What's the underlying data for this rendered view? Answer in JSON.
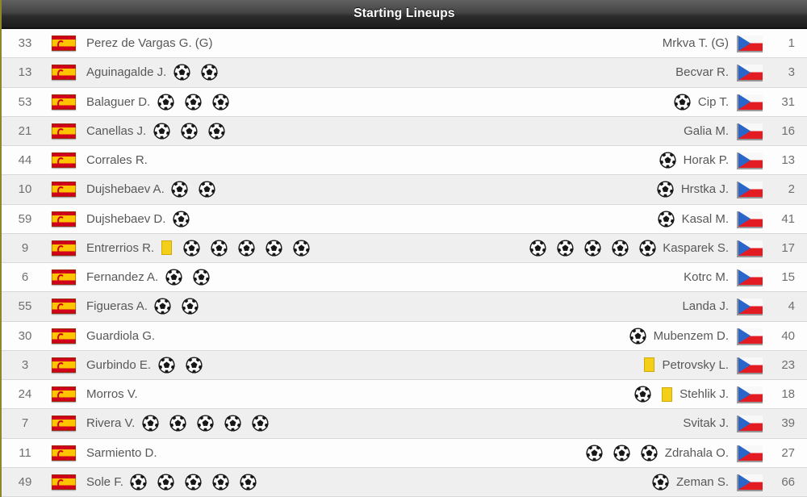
{
  "header": {
    "title": "Starting Lineups"
  },
  "icons": {
    "goal": "soccer-ball-icon",
    "booking": "yellow-card-icon",
    "left_flag": "spain-flag-icon",
    "right_flag": "czech-flag-icon"
  },
  "colors": {
    "yellow_card": "#f3cf17",
    "spain_red": "#d0021b",
    "spain_yellow": "#ffc400",
    "czech_blue": "#2a66c9",
    "czech_red": "#e31b23",
    "header_top": "#616161",
    "header_bottom": "#1e1e1e",
    "row_alt_bg": "#efeff0",
    "left_edge_accent": "#8d872c"
  },
  "table": {
    "rows": [
      {
        "left": {
          "num": "33",
          "name": "Perez de Vargas G. (G)",
          "goals": 0,
          "yellow_card": false
        },
        "right": {
          "num": "1",
          "name": "Mrkva T. (G)",
          "goals": 0,
          "yellow_card": false
        }
      },
      {
        "left": {
          "num": "13",
          "name": "Aguinagalde J.",
          "goals": 2,
          "yellow_card": false
        },
        "right": {
          "num": "3",
          "name": "Becvar R.",
          "goals": 0,
          "yellow_card": false
        }
      },
      {
        "left": {
          "num": "53",
          "name": "Balaguer D.",
          "goals": 3,
          "yellow_card": false
        },
        "right": {
          "num": "31",
          "name": "Cip T.",
          "goals": 1,
          "yellow_card": false
        }
      },
      {
        "left": {
          "num": "21",
          "name": "Canellas J.",
          "goals": 3,
          "yellow_card": false
        },
        "right": {
          "num": "16",
          "name": "Galia M.",
          "goals": 0,
          "yellow_card": false
        }
      },
      {
        "left": {
          "num": "44",
          "name": "Corrales R.",
          "goals": 0,
          "yellow_card": false
        },
        "right": {
          "num": "13",
          "name": "Horak P.",
          "goals": 1,
          "yellow_card": false
        }
      },
      {
        "left": {
          "num": "10",
          "name": "Dujshebaev A.",
          "goals": 2,
          "yellow_card": false
        },
        "right": {
          "num": "2",
          "name": "Hrstka J.",
          "goals": 1,
          "yellow_card": false
        }
      },
      {
        "left": {
          "num": "59",
          "name": "Dujshebaev D.",
          "goals": 1,
          "yellow_card": false
        },
        "right": {
          "num": "41",
          "name": "Kasal M.",
          "goals": 1,
          "yellow_card": false
        }
      },
      {
        "left": {
          "num": "9",
          "name": "Entrerrios R.",
          "goals": 5,
          "yellow_card": true
        },
        "right": {
          "num": "17",
          "name": "Kasparek S.",
          "goals": 5,
          "yellow_card": false
        }
      },
      {
        "left": {
          "num": "6",
          "name": "Fernandez A.",
          "goals": 2,
          "yellow_card": false
        },
        "right": {
          "num": "15",
          "name": "Kotrc M.",
          "goals": 0,
          "yellow_card": false
        }
      },
      {
        "left": {
          "num": "55",
          "name": "Figueras A.",
          "goals": 2,
          "yellow_card": false
        },
        "right": {
          "num": "4",
          "name": "Landa J.",
          "goals": 0,
          "yellow_card": false
        }
      },
      {
        "left": {
          "num": "30",
          "name": "Guardiola G.",
          "goals": 0,
          "yellow_card": false
        },
        "right": {
          "num": "40",
          "name": "Mubenzem D.",
          "goals": 1,
          "yellow_card": false
        }
      },
      {
        "left": {
          "num": "3",
          "name": "Gurbindo E.",
          "goals": 2,
          "yellow_card": false
        },
        "right": {
          "num": "23",
          "name": "Petrovsky L.",
          "goals": 0,
          "yellow_card": true
        }
      },
      {
        "left": {
          "num": "24",
          "name": "Morros V.",
          "goals": 0,
          "yellow_card": false
        },
        "right": {
          "num": "18",
          "name": "Stehlik J.",
          "goals": 1,
          "yellow_card": true
        }
      },
      {
        "left": {
          "num": "7",
          "name": "Rivera V.",
          "goals": 5,
          "yellow_card": false
        },
        "right": {
          "num": "39",
          "name": "Svitak J.",
          "goals": 0,
          "yellow_card": false
        }
      },
      {
        "left": {
          "num": "11",
          "name": "Sarmiento D.",
          "goals": 0,
          "yellow_card": false
        },
        "right": {
          "num": "27",
          "name": "Zdrahala O.",
          "goals": 3,
          "yellow_card": false
        }
      },
      {
        "left": {
          "num": "49",
          "name": "Sole F.",
          "goals": 5,
          "yellow_card": false
        },
        "right": {
          "num": "66",
          "name": "Zeman S.",
          "goals": 1,
          "yellow_card": false
        }
      }
    ]
  }
}
